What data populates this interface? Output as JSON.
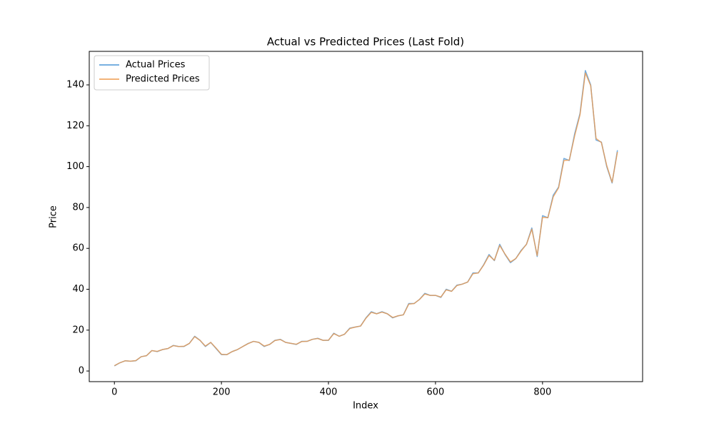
{
  "chart_data": {
    "type": "line",
    "title": "Actual vs Predicted Prices (Last Fold)",
    "x_label": "Index",
    "y_label": "Price",
    "x": [
      0,
      10,
      20,
      30,
      40,
      50,
      60,
      70,
      80,
      90,
      100,
      110,
      120,
      130,
      140,
      150,
      160,
      170,
      180,
      190,
      200,
      210,
      220,
      230,
      240,
      250,
      260,
      270,
      280,
      290,
      300,
      310,
      320,
      330,
      340,
      350,
      360,
      370,
      380,
      390,
      400,
      410,
      420,
      430,
      440,
      450,
      460,
      470,
      480,
      490,
      500,
      510,
      520,
      530,
      540,
      550,
      560,
      570,
      580,
      590,
      600,
      610,
      620,
      630,
      640,
      650,
      660,
      670,
      680,
      690,
      700,
      710,
      720,
      730,
      740,
      750,
      760,
      770,
      780,
      790,
      800,
      810,
      820,
      830,
      840,
      850,
      860,
      870,
      880,
      890,
      900,
      910,
      920,
      930,
      940
    ],
    "series": [
      {
        "name": "Actual Prices",
        "color": "#4c96d7",
        "values": [
          2.5,
          4,
          5,
          4.8,
          5,
          7,
          7.5,
          10,
          9.5,
          10.5,
          11,
          12.5,
          12,
          12,
          13.5,
          17,
          15,
          12,
          14,
          11,
          8,
          8,
          9.5,
          10.5,
          12,
          13.5,
          14.5,
          14,
          12,
          13,
          15,
          15.5,
          14,
          13.5,
          13,
          14.5,
          14.5,
          15.5,
          16,
          15,
          15,
          18.5,
          17,
          18,
          21,
          21.5,
          22,
          26,
          29,
          28,
          29,
          28,
          26,
          27,
          27.5,
          33,
          33,
          35,
          38,
          37,
          37,
          36,
          40,
          39,
          42,
          42.5,
          43.5,
          48,
          48,
          52,
          57,
          54,
          62,
          57,
          53,
          55,
          59,
          62,
          70,
          56,
          76,
          75,
          86,
          90,
          104,
          103,
          116,
          126,
          147,
          140,
          113,
          112,
          100,
          92,
          108
        ]
      },
      {
        "name": "Predicted Prices",
        "color": "#ee9a4d",
        "values": [
          2.6,
          4,
          5,
          4.8,
          5.1,
          7,
          7.5,
          10,
          9.6,
          10.5,
          11,
          12.4,
          12,
          12.1,
          13.5,
          16.8,
          15,
          12.2,
          14,
          11.2,
          8.2,
          8,
          9.5,
          10.5,
          12,
          13.4,
          14.5,
          14,
          12.2,
          13,
          14.9,
          15.4,
          14,
          13.5,
          13.1,
          14.4,
          14.5,
          15.5,
          15.9,
          15,
          15.1,
          18.3,
          17,
          18,
          20.8,
          21.5,
          22,
          25.8,
          28.7,
          28,
          28.8,
          28,
          26.2,
          27,
          27.5,
          32.7,
          33,
          35,
          37.7,
          37,
          37,
          36.2,
          39.7,
          39,
          41.8,
          42.5,
          43.5,
          47.6,
          48,
          51.8,
          56.5,
          54.2,
          61.4,
          57.2,
          53.4,
          55,
          58.7,
          62,
          69.4,
          56.5,
          75.2,
          75,
          85.2,
          89.6,
          103,
          103.2,
          115,
          125.3,
          145.8,
          139.6,
          113.8,
          111.8,
          100.5,
          92.3,
          107.2
        ]
      }
    ],
    "xlim": [
      -47,
      987
    ],
    "ylim": [
      -5.2,
      156.4
    ],
    "xticks": [
      0,
      200,
      400,
      600,
      800
    ],
    "yticks": [
      0,
      20,
      40,
      60,
      80,
      100,
      120,
      140
    ],
    "grid": false,
    "legend": "upper-left"
  }
}
